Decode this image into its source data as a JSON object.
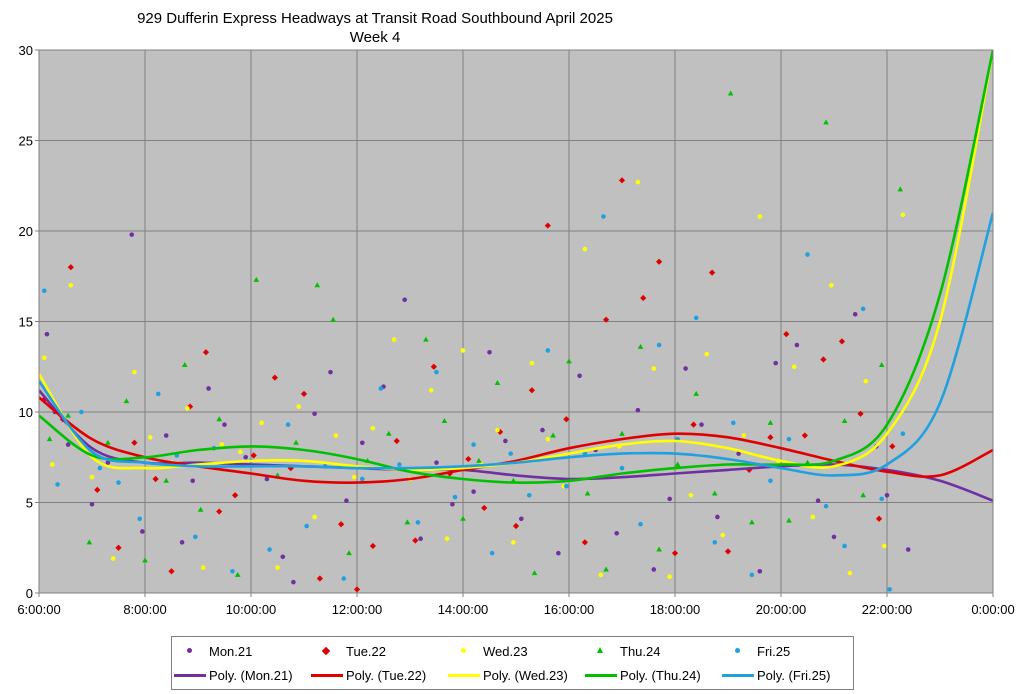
{
  "chart_data": {
    "type": "scatter",
    "title": "929 Dufferin Express Headways at Transit Road Southbound April 2025",
    "subtitle": "Week 4",
    "x_axis": {
      "min_hours": 6,
      "max_hours": 24,
      "tick_hours": [
        6,
        8,
        10,
        12,
        14,
        16,
        18,
        20,
        22,
        24
      ],
      "tick_labels": [
        "6:00:00",
        "8:00:00",
        "10:00:00",
        "12:00:00",
        "14:00:00",
        "16:00:00",
        "18:00:00",
        "20:00:00",
        "22:00:00",
        "0:00:00"
      ]
    },
    "y_axis": {
      "min": 0,
      "max": 30,
      "ticks": [
        0,
        5,
        10,
        15,
        20,
        25,
        30
      ]
    },
    "grid": true,
    "legend_position": "bottom",
    "series": [
      {
        "name": "Mon.21",
        "marker": "dot",
        "color": "#7030A0",
        "x": [
          6.15,
          6.3,
          6.55,
          7.0,
          7.3,
          7.75,
          7.95,
          8.4,
          8.7,
          8.9,
          9.2,
          9.5,
          9.9,
          10.3,
          10.6,
          10.8,
          11.2,
          11.5,
          11.8,
          12.1,
          12.5,
          12.9,
          13.2,
          13.5,
          13.8,
          14.2,
          14.5,
          14.8,
          15.1,
          15.5,
          15.8,
          16.2,
          16.5,
          16.9,
          17.3,
          17.6,
          17.9,
          18.2,
          18.5,
          18.8,
          19.2,
          19.6,
          19.9,
          20.3,
          20.7,
          21.0,
          21.4,
          21.8,
          22.0,
          22.4
        ],
        "y": [
          14.3,
          10.0,
          8.2,
          4.9,
          7.2,
          19.8,
          3.4,
          8.7,
          2.8,
          6.2,
          11.3,
          9.3,
          7.5,
          6.3,
          2.0,
          0.6,
          9.9,
          12.2,
          5.1,
          8.3,
          11.4,
          16.2,
          3.0,
          7.2,
          4.9,
          5.6,
          13.3,
          8.4,
          4.1,
          9.0,
          2.2,
          12.0,
          7.9,
          3.3,
          10.1,
          1.3,
          5.2,
          12.4,
          9.3,
          4.2,
          7.7,
          1.2,
          12.7,
          13.7,
          5.1,
          3.1,
          15.4,
          8.1,
          5.4,
          2.4
        ]
      },
      {
        "name": "Tue.22",
        "marker": "diamond",
        "color": "#E00000",
        "x": [
          6.1,
          6.45,
          6.6,
          7.1,
          7.5,
          7.8,
          8.2,
          8.5,
          8.85,
          9.15,
          9.4,
          9.7,
          10.05,
          10.45,
          10.75,
          11.0,
          11.3,
          11.7,
          12.0,
          12.3,
          12.75,
          13.1,
          13.45,
          13.75,
          14.1,
          14.4,
          14.7,
          15.0,
          15.3,
          15.6,
          15.95,
          16.3,
          16.7,
          17.0,
          17.4,
          17.7,
          18.0,
          18.35,
          18.7,
          19.0,
          19.4,
          19.8,
          20.1,
          20.45,
          20.8,
          21.15,
          21.5,
          21.85,
          22.1
        ],
        "y": [
          10.7,
          9.6,
          18.0,
          5.7,
          2.5,
          8.3,
          6.3,
          1.2,
          10.3,
          13.3,
          4.5,
          5.4,
          7.6,
          11.9,
          6.9,
          11.0,
          0.8,
          3.8,
          0.2,
          2.6,
          8.4,
          2.9,
          12.5,
          6.6,
          7.4,
          4.7,
          8.9,
          3.7,
          11.2,
          20.3,
          9.6,
          2.8,
          15.1,
          22.8,
          16.3,
          18.3,
          2.2,
          9.3,
          17.7,
          2.3,
          6.8,
          8.6,
          14.3,
          8.7,
          12.9,
          13.9,
          9.9,
          4.1,
          8.1
        ]
      },
      {
        "name": "Wed.23",
        "marker": "dot",
        "color": "#FFFF00",
        "x": [
          6.1,
          6.25,
          6.6,
          7.0,
          7.4,
          7.8,
          8.1,
          8.5,
          8.8,
          9.1,
          9.45,
          9.8,
          10.2,
          10.5,
          10.9,
          11.2,
          11.6,
          11.95,
          12.3,
          12.7,
          13.0,
          13.4,
          13.7,
          14.0,
          14.35,
          14.65,
          14.95,
          15.3,
          15.6,
          15.9,
          16.3,
          16.6,
          16.95,
          17.3,
          17.6,
          17.9,
          18.3,
          18.6,
          18.9,
          19.3,
          19.6,
          19.95,
          20.25,
          20.6,
          20.95,
          21.3,
          21.6,
          21.95,
          22.3
        ],
        "y": [
          13.0,
          7.1,
          17.0,
          6.4,
          1.9,
          12.2,
          8.6,
          7.2,
          10.2,
          1.4,
          8.2,
          7.8,
          9.4,
          1.4,
          10.3,
          4.2,
          8.7,
          6.4,
          9.1,
          14.0,
          6.3,
          11.2,
          3.0,
          13.4,
          7.1,
          9.0,
          2.8,
          12.7,
          8.5,
          5.9,
          19.0,
          1.0,
          8.1,
          22.7,
          12.4,
          0.9,
          5.4,
          13.2,
          3.2,
          8.7,
          20.8,
          7.3,
          12.5,
          4.2,
          17.0,
          1.1,
          11.7,
          2.6,
          20.9
        ]
      },
      {
        "name": "Thu.24",
        "marker": "triangle",
        "color": "#00C000",
        "x": [
          6.2,
          6.55,
          6.95,
          7.3,
          7.65,
          8.0,
          8.4,
          8.75,
          9.05,
          9.4,
          9.75,
          10.1,
          10.5,
          10.85,
          11.25,
          11.55,
          11.85,
          12.2,
          12.6,
          12.95,
          13.3,
          13.65,
          14.0,
          14.3,
          14.65,
          14.95,
          15.35,
          15.7,
          16.0,
          16.35,
          16.7,
          17.0,
          17.35,
          17.7,
          18.05,
          18.4,
          18.75,
          19.05,
          19.45,
          19.8,
          20.15,
          20.5,
          20.85,
          21.2,
          21.55,
          21.9,
          22.25
        ],
        "y": [
          8.5,
          9.8,
          2.8,
          8.3,
          10.6,
          1.8,
          6.2,
          12.6,
          4.6,
          9.6,
          1.0,
          17.3,
          6.5,
          8.3,
          17.0,
          15.1,
          2.2,
          7.3,
          8.8,
          3.9,
          14.0,
          9.5,
          4.1,
          7.3,
          11.6,
          6.2,
          1.1,
          8.7,
          12.8,
          5.5,
          1.3,
          8.8,
          13.6,
          2.4,
          7.1,
          11.0,
          5.5,
          27.6,
          3.9,
          9.4,
          4.0,
          7.2,
          26.0,
          9.5,
          5.4,
          12.6,
          22.3
        ]
      },
      {
        "name": "Fri.25",
        "marker": "dot",
        "color": "#1FA0E0",
        "x": [
          6.1,
          6.35,
          6.8,
          7.15,
          7.5,
          7.9,
          8.25,
          8.6,
          8.95,
          9.3,
          9.65,
          10.0,
          10.35,
          10.7,
          11.05,
          11.4,
          11.75,
          12.1,
          12.45,
          12.8,
          13.15,
          13.5,
          13.85,
          14.2,
          14.55,
          14.9,
          15.25,
          15.6,
          15.95,
          16.3,
          16.65,
          17.0,
          17.35,
          17.7,
          18.05,
          18.4,
          18.75,
          19.1,
          19.45,
          19.8,
          20.15,
          20.5,
          20.85,
          21.2,
          21.55,
          21.9,
          22.05,
          22.3
        ],
        "y": [
          16.7,
          6.0,
          10.0,
          6.9,
          6.1,
          4.1,
          11.0,
          7.6,
          3.1,
          8.0,
          1.2,
          7.3,
          2.4,
          9.3,
          3.7,
          7.0,
          0.8,
          6.3,
          11.3,
          7.1,
          3.9,
          12.2,
          5.3,
          8.2,
          2.2,
          7.7,
          5.4,
          13.4,
          5.9,
          7.7,
          20.8,
          6.9,
          3.8,
          13.7,
          8.5,
          15.2,
          2.8,
          9.4,
          1.0,
          6.2,
          8.5,
          18.7,
          4.8,
          2.6,
          15.7,
          5.2,
          0.2,
          8.8
        ]
      }
    ],
    "trendlines": [
      {
        "name": "Poly. (Mon.21)",
        "color": "#7030A0",
        "x": [
          6,
          7,
          8,
          9,
          10,
          11,
          12,
          13,
          14,
          15,
          16,
          17,
          18,
          19,
          20,
          21,
          22,
          23,
          24
        ],
        "y": [
          11.2,
          8.0,
          7.2,
          7.2,
          7.1,
          7.0,
          6.9,
          6.8,
          6.8,
          6.5,
          6.3,
          6.4,
          6.6,
          6.8,
          7.0,
          7.1,
          6.8,
          6.2,
          5.1
        ]
      },
      {
        "name": "Poly. (Tue.22)",
        "color": "#E00000",
        "x": [
          6,
          7,
          8,
          9,
          10,
          11,
          12,
          13,
          14,
          15,
          16,
          17,
          18,
          19,
          20,
          21,
          22,
          23,
          24
        ],
        "y": [
          10.8,
          8.5,
          7.5,
          7.0,
          6.6,
          6.2,
          6.1,
          6.3,
          6.8,
          7.3,
          8.0,
          8.5,
          8.8,
          8.6,
          8.0,
          7.3,
          6.7,
          6.5,
          7.9
        ]
      },
      {
        "name": "Poly. (Wed.23)",
        "color": "#FFFF00",
        "x": [
          6,
          7,
          8,
          9,
          10,
          11,
          12,
          13,
          14,
          15,
          16,
          17,
          18,
          19,
          20,
          21,
          22,
          23,
          24
        ],
        "y": [
          12.1,
          7.5,
          6.9,
          7.1,
          7.3,
          7.3,
          7.0,
          6.8,
          6.9,
          7.2,
          7.7,
          8.2,
          8.4,
          8.0,
          7.3,
          7.0,
          8.8,
          15.0,
          30.0
        ]
      },
      {
        "name": "Poly. (Thu.24)",
        "color": "#00C000",
        "x": [
          6,
          7,
          8,
          9,
          10,
          11,
          12,
          13,
          14,
          15,
          16,
          17,
          18,
          19,
          20,
          21,
          22,
          23,
          24
        ],
        "y": [
          9.8,
          7.6,
          7.5,
          7.9,
          8.1,
          7.9,
          7.4,
          6.7,
          6.3,
          6.1,
          6.2,
          6.6,
          6.9,
          7.1,
          7.1,
          7.3,
          9.3,
          16.5,
          30.0
        ]
      },
      {
        "name": "Poly. (Fri.25)",
        "color": "#1FA0E0",
        "x": [
          6,
          7,
          8,
          9,
          10,
          11,
          12,
          13,
          14,
          15,
          16,
          17,
          18,
          19,
          20,
          21,
          22,
          23,
          24
        ],
        "y": [
          11.7,
          7.8,
          7.2,
          7.0,
          7.0,
          7.0,
          6.9,
          6.9,
          7.0,
          7.2,
          7.5,
          7.7,
          7.7,
          7.4,
          6.9,
          6.5,
          7.1,
          10.5,
          21.0
        ]
      }
    ]
  },
  "legend": {
    "row1": [
      {
        "label": "Mon.21",
        "marker": "dot",
        "color": "#7030A0"
      },
      {
        "label": "Tue.22",
        "marker": "diamond",
        "color": "#E00000"
      },
      {
        "label": "Wed.23",
        "marker": "dot",
        "color": "#FFFF00"
      },
      {
        "label": "Thu.24",
        "marker": "triangle",
        "color": "#00C000"
      },
      {
        "label": "Fri.25",
        "marker": "dot",
        "color": "#1FA0E0"
      }
    ],
    "row2": [
      {
        "label": "Poly. (Mon.21)",
        "color": "#7030A0"
      },
      {
        "label": "Poly. (Tue.22)",
        "color": "#E00000"
      },
      {
        "label": "Poly. (Wed.23)",
        "color": "#FFFF00"
      },
      {
        "label": "Poly. (Thu.24)",
        "color": "#00C000"
      },
      {
        "label": "Poly. (Fri.25)",
        "color": "#1FA0E0"
      }
    ]
  }
}
